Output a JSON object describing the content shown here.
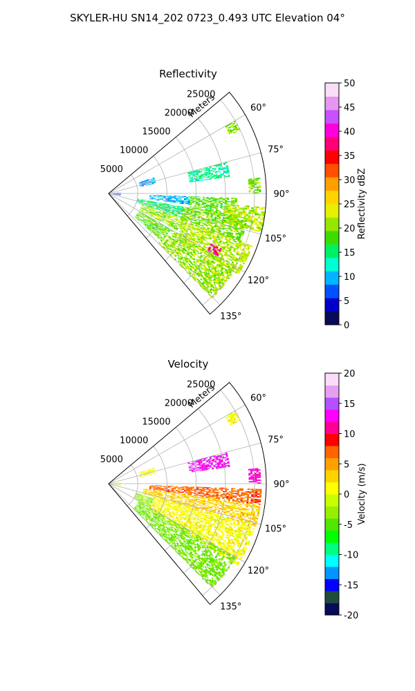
{
  "figure": {
    "title": "SKYLER-HU  SN14_202  0723_0.493 UTC Elevation 04°"
  },
  "chart_data": [
    {
      "type": "heatmap",
      "subtype": "polar-sector-radar",
      "title": "Reflectivity",
      "radial_label": "Meters",
      "range_ticks": [
        "5000",
        "10000",
        "15000",
        "20000",
        "25000"
      ],
      "range_max": 27000,
      "azimuth_range": [
        50,
        140
      ],
      "azimuth_ticks": [
        "60°",
        "75°",
        "90°",
        "105°",
        "120°",
        "135°"
      ],
      "grid": true,
      "colorbar": {
        "label": "Reflectivity dBZ",
        "min": 0,
        "max": 50,
        "ticks": [
          "0",
          "5",
          "10",
          "15",
          "20",
          "25",
          "30",
          "35",
          "40",
          "45",
          "50"
        ],
        "colors": [
          "#0a0a5a",
          "#0000c8",
          "#0050ff",
          "#00b4ff",
          "#00ffd2",
          "#00f064",
          "#3cdc00",
          "#96e600",
          "#e6f000",
          "#ffd200",
          "#ffa000",
          "#ff5000",
          "#ff0000",
          "#ff0078",
          "#ff00dc",
          "#c850ff",
          "#e696f0",
          "#f8dcf8"
        ]
      },
      "echo_regions": [
        {
          "az": [
            75,
            82
          ],
          "range": [
            14000,
            21000
          ],
          "value": 14
        },
        {
          "az": [
            70,
            78
          ],
          "range": [
            5500,
            8000
          ],
          "value": 9
        },
        {
          "az": [
            84,
            90
          ],
          "range": [
            24000,
            26000
          ],
          "value": 20
        },
        {
          "az": [
            92,
            98
          ],
          "range": [
            7000,
            14000
          ],
          "value": 10
        },
        {
          "az": [
            92,
            100
          ],
          "range": [
            14000,
            22000
          ],
          "value": 19
        },
        {
          "az": [
            95,
            104
          ],
          "range": [
            20000,
            27000
          ],
          "value": 22
        },
        {
          "az": [
            100,
            108
          ],
          "range": [
            5000,
            13000
          ],
          "value": 15
        },
        {
          "az": [
            100,
            110
          ],
          "range": [
            13000,
            24000
          ],
          "value": 20
        },
        {
          "az": [
            108,
            118
          ],
          "range": [
            6000,
            14000
          ],
          "value": 21
        },
        {
          "az": [
            110,
            122
          ],
          "range": [
            14000,
            26000
          ],
          "value": 22
        },
        {
          "az": [
            116,
            120
          ],
          "range": [
            19500,
            21500
          ],
          "value": 38
        },
        {
          "az": [
            120,
            135
          ],
          "range": [
            12000,
            25000
          ],
          "value": 21
        },
        {
          "az": [
            120,
            132
          ],
          "range": [
            6000,
            12000
          ],
          "value": 19
        },
        {
          "az": [
            85,
            100
          ],
          "range": [
            700,
            2000
          ],
          "value": 6
        },
        {
          "az": [
            60,
            64
          ],
          "range": [
            23000,
            25000
          ],
          "value": 20
        }
      ]
    },
    {
      "type": "heatmap",
      "subtype": "polar-sector-radar",
      "title": "Velocity",
      "radial_label": "Meters",
      "range_ticks": [
        "5000",
        "10000",
        "15000",
        "20000",
        "25000"
      ],
      "range_max": 27000,
      "azimuth_range": [
        50,
        140
      ],
      "azimuth_ticks": [
        "60°",
        "75°",
        "90°",
        "105°",
        "120°",
        "135°"
      ],
      "grid": true,
      "colorbar": {
        "label": "Velocity (m/s)",
        "min": -20,
        "max": 20,
        "ticks": [
          "-20",
          "-15",
          "-10",
          "-5",
          "0",
          "5",
          "10",
          "15",
          "20"
        ],
        "colors": [
          "#0a0a5a",
          "#1e4b3c",
          "#0000ff",
          "#0096ff",
          "#00ffff",
          "#00ff80",
          "#00ff00",
          "#50e600",
          "#96f000",
          "#c8ff00",
          "#ffff00",
          "#ffd200",
          "#ffa000",
          "#ff6400",
          "#ff0000",
          "#ff0096",
          "#ff00ff",
          "#b450ff",
          "#e6a0f0",
          "#f8dcf8"
        ]
      },
      "echo_regions": [
        {
          "az": [
            75,
            82
          ],
          "range": [
            14000,
            21000
          ],
          "value": 13
        },
        {
          "az": [
            70,
            78
          ],
          "range": [
            5500,
            8000
          ],
          "value": 1
        },
        {
          "az": [
            84,
            90
          ],
          "range": [
            24000,
            26000
          ],
          "value": 12
        },
        {
          "az": [
            92,
            98
          ],
          "range": [
            7000,
            26000
          ],
          "value": 7
        },
        {
          "az": [
            98,
            106
          ],
          "range": [
            6000,
            26000
          ],
          "value": 3
        },
        {
          "az": [
            106,
            122
          ],
          "range": [
            8000,
            26000
          ],
          "value": 1
        },
        {
          "az": [
            108,
            120
          ],
          "range": [
            5000,
            8000
          ],
          "value": -3
        },
        {
          "az": [
            120,
            135
          ],
          "range": [
            6000,
            25000
          ],
          "value": -4
        },
        {
          "az": [
            85,
            100
          ],
          "range": [
            700,
            2000
          ],
          "value": 0
        },
        {
          "az": [
            60,
            64
          ],
          "range": [
            23000,
            25000
          ],
          "value": 1
        }
      ]
    }
  ]
}
